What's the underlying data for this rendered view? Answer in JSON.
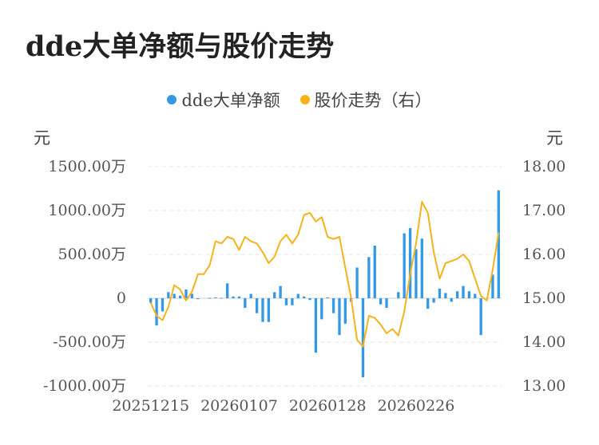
{
  "title": "dde大单净额与股价走势",
  "legend": [
    {
      "label": "dde大单净额",
      "color": "#3399e6"
    },
    {
      "label": "股价走势（右）",
      "color": "#f5b31b"
    }
  ],
  "units": {
    "left": "元",
    "right": "元"
  },
  "chart_data": {
    "type": "bar+line",
    "left_axis": {
      "ticks": [
        "1500.00万",
        "1000.00万",
        "500.00万",
        "0",
        "-500.00万",
        "-1000.00万"
      ],
      "range": [
        -1000,
        1500
      ]
    },
    "right_axis": {
      "ticks": [
        "18.00",
        "17.00",
        "16.00",
        "15.00",
        "14.00",
        "13.00"
      ],
      "range": [
        13,
        18
      ]
    },
    "x_ticks": [
      "20251215",
      "20260107",
      "20260128",
      "20260226"
    ],
    "series": [
      {
        "name": "dde大单净额",
        "type": "bar",
        "axis": "left",
        "values": [
          -50,
          -310,
          -150,
          70,
          50,
          30,
          100,
          50,
          -10,
          0,
          5,
          10,
          5,
          170,
          20,
          20,
          -110,
          50,
          -170,
          -270,
          -270,
          70,
          140,
          -80,
          -80,
          50,
          20,
          -20,
          -620,
          -240,
          10,
          -170,
          -420,
          -290,
          -40,
          350,
          -900,
          470,
          600,
          -70,
          -110,
          0,
          70,
          740,
          800,
          560,
          680,
          -120,
          -50,
          110,
          60,
          -40,
          80,
          140,
          80,
          50,
          -420,
          0,
          270,
          1230
        ]
      },
      {
        "name": "股价走势（右）",
        "type": "line",
        "axis": "right",
        "values": [
          14.9,
          14.6,
          14.5,
          14.8,
          15.3,
          15.2,
          14.95,
          15.15,
          15.55,
          15.55,
          15.75,
          16.3,
          16.25,
          16.4,
          16.35,
          16.1,
          16.4,
          16.3,
          16.25,
          16.05,
          15.8,
          15.95,
          16.3,
          16.45,
          16.25,
          16.45,
          16.9,
          16.95,
          16.75,
          16.85,
          16.4,
          16.35,
          16.4,
          15.7,
          15.0,
          14.05,
          13.9,
          14.6,
          14.55,
          14.4,
          14.2,
          14.3,
          14.15,
          14.7,
          15.55,
          16.25,
          17.2,
          16.95,
          16.05,
          15.45,
          15.8,
          15.85,
          15.9,
          16.0,
          15.85,
          15.45,
          15.05,
          14.95,
          15.65,
          16.5
        ]
      }
    ]
  }
}
